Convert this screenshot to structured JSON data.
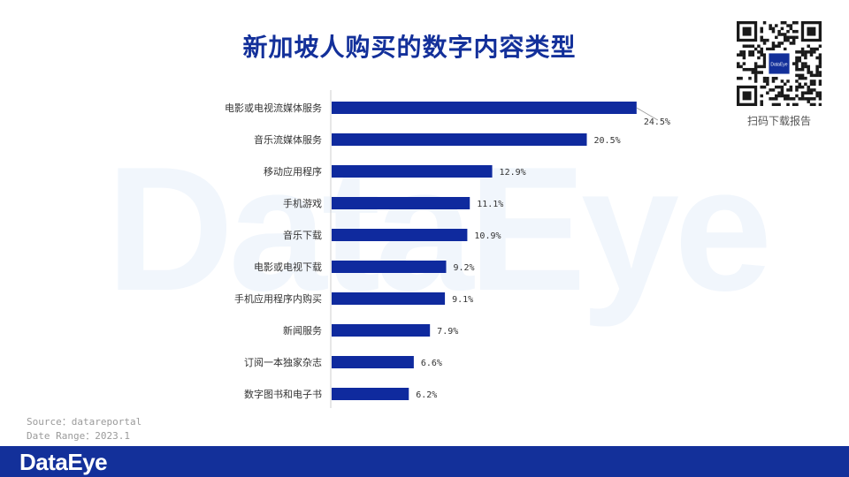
{
  "header": {
    "title": "新加坡人购买的数字内容类型"
  },
  "qr": {
    "label": "扫码下载报告",
    "center_text": "DataEye"
  },
  "watermark": "DataEye",
  "source": {
    "line1": "Source：datareportal",
    "line2": "Date Range：2023.1"
  },
  "footer": {
    "logo": "DataEye"
  },
  "colors": {
    "bar": "#0f2a9e",
    "title": "#13309a",
    "footer": "#13309a"
  },
  "chart_data": {
    "type": "bar",
    "orientation": "horizontal",
    "categories": [
      "电影或电视流媒体服务",
      "音乐流媒体服务",
      "移动应用程序",
      "手机游戏",
      "音乐下载",
      "电影或电视下载",
      "手机应用程序内购买",
      "新闻服务",
      "订阅一本独家杂志",
      "数字图书和电子书"
    ],
    "values": [
      24.5,
      20.5,
      12.9,
      11.1,
      10.9,
      9.2,
      9.1,
      7.9,
      6.6,
      6.2
    ],
    "data_labels": [
      "24.5%",
      "20.5%",
      "12.9%",
      "11.1%",
      "10.9%",
      "9.2%",
      "9.1%",
      "7.9%",
      "6.6%",
      "6.2%"
    ],
    "title": "新加坡人购买的数字内容类型",
    "xlabel": "",
    "ylabel": "",
    "xlim": [
      0,
      27
    ],
    "grid": false,
    "legend": "none"
  }
}
